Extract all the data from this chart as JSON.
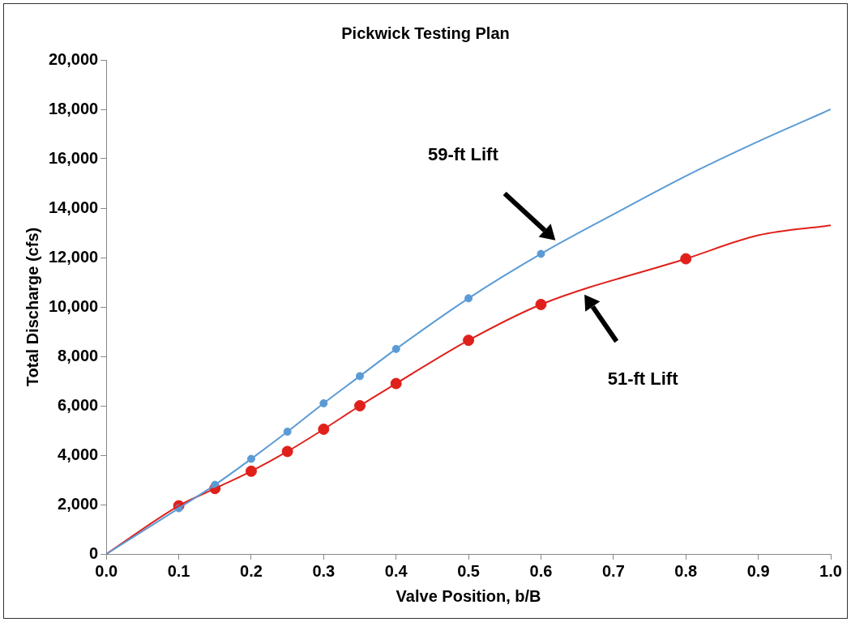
{
  "chart_data": {
    "type": "line",
    "title": "Pickwick Testing Plan",
    "xlabel": "Valve Position, b/B",
    "ylabel": "Total Discharge (cfs)",
    "xlim": [
      0,
      1
    ],
    "xticks": [
      {
        "value": 0,
        "label": "0.0"
      },
      {
        "value": 0.1,
        "label": "0.1"
      },
      {
        "value": 0.2,
        "label": "0.2"
      },
      {
        "value": 0.3,
        "label": "0.3"
      },
      {
        "value": 0.4,
        "label": "0.4"
      },
      {
        "value": 0.5,
        "label": "0.5"
      },
      {
        "value": 0.6,
        "label": "0.6"
      },
      {
        "value": 0.7,
        "label": "0.7"
      },
      {
        "value": 0.8,
        "label": "0.8"
      },
      {
        "value": 0.9,
        "label": "0.9"
      },
      {
        "value": 1,
        "label": "1.0"
      }
    ],
    "ylim": [
      0,
      20000
    ],
    "yticks": [
      {
        "value": 0,
        "label": "0"
      },
      {
        "value": 2000,
        "label": "2,000"
      },
      {
        "value": 4000,
        "label": "4,000"
      },
      {
        "value": 6000,
        "label": "6,000"
      },
      {
        "value": 8000,
        "label": "8,000"
      },
      {
        "value": 10000,
        "label": "10,000"
      },
      {
        "value": 12000,
        "label": "12,000"
      },
      {
        "value": 14000,
        "label": "14,000"
      },
      {
        "value": 16000,
        "label": "16,000"
      },
      {
        "value": 18000,
        "label": "18,000"
      },
      {
        "value": 20000,
        "label": "20,000"
      }
    ],
    "grid": false,
    "legend": false,
    "line_style": "solid",
    "series": [
      {
        "marker": "none",
        "color": "#5b9bd5",
        "x": [
          0,
          0.1,
          0.15,
          0.2,
          0.25,
          0.3,
          0.35,
          0.4,
          0.5,
          0.6,
          0.7,
          0.8,
          0.9,
          1
        ],
        "values": [
          0,
          1850,
          2800,
          3850,
          4950,
          6100,
          7200,
          8300,
          10350,
          12150,
          13750,
          15300,
          16700,
          18000
        ]
      },
      {
        "marker": "none",
        "color": "#e0201b",
        "x": [
          0,
          0.1,
          0.15,
          0.2,
          0.25,
          0.3,
          0.35,
          0.4,
          0.5,
          0.6,
          0.8,
          0.9,
          1
        ],
        "values": [
          0,
          1950,
          2650,
          3350,
          4150,
          5050,
          6000,
          6900,
          8650,
          10100,
          11950,
          12900,
          13300
        ]
      },
      {
        "type": "scatter",
        "marker": "circle",
        "color": "#5b9bd5",
        "x": [
          0.1,
          0.15,
          0.2,
          0.25,
          0.3,
          0.35,
          0.4,
          0.5,
          0.6
        ],
        "values": [
          1850,
          2800,
          3850,
          4950,
          6100,
          7200,
          8300,
          10350,
          12150
        ]
      },
      {
        "type": "scatter",
        "marker": "circle",
        "color": "#e0201b",
        "x": [
          0.1,
          0.15,
          0.2,
          0.25,
          0.3,
          0.35,
          0.4,
          0.5,
          0.6,
          0.8
        ],
        "values": [
          1950,
          2650,
          3350,
          4150,
          5050,
          6000,
          6900,
          8650,
          10100,
          11950
        ]
      }
    ],
    "annotations": [
      "59-ft Lift",
      "51-ft Lift"
    ]
  }
}
